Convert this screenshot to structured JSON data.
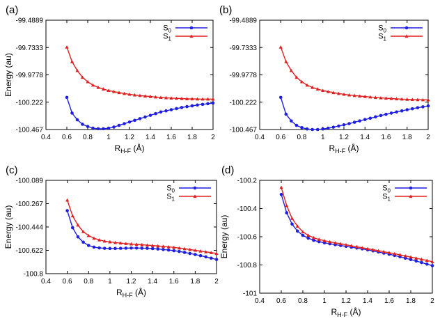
{
  "figure": {
    "colors": {
      "S0": "#1f1fe0",
      "S1": "#e01f1f"
    }
  },
  "chart_data": [
    {
      "type": "line",
      "panel": "(a)",
      "xlabel": "RH-F (Å)",
      "ylabel": "Energy (au)",
      "xlim": [
        0.4,
        2.0
      ],
      "ylim": [
        -100.467,
        -99.4889
      ],
      "xticks": [
        "0.4",
        "0.6",
        "0.8",
        "1",
        "1.2",
        "1.4",
        "1.6",
        "1.8",
        "2"
      ],
      "yticks": [
        "-99.4889",
        "-99.7333",
        "-99.9778",
        "-100.222",
        "-100.467"
      ],
      "legend": {
        "position": "top-right",
        "entries": [
          {
            "main": "S",
            "sub": "0"
          },
          {
            "main": "S",
            "sub": "1"
          }
        ]
      },
      "x": [
        0.6,
        0.65,
        0.7,
        0.75,
        0.8,
        0.85,
        0.9,
        0.95,
        1.0,
        1.05,
        1.1,
        1.15,
        1.2,
        1.25,
        1.3,
        1.35,
        1.4,
        1.45,
        1.5,
        1.55,
        1.6,
        1.65,
        1.7,
        1.75,
        1.8,
        1.85,
        1.9,
        1.95,
        2.0
      ],
      "series": [
        {
          "name": "S0",
          "marker": "circle",
          "values": [
            -100.18,
            -100.32,
            -100.38,
            -100.42,
            -100.44,
            -100.455,
            -100.46,
            -100.46,
            -100.455,
            -100.445,
            -100.43,
            -100.415,
            -100.4,
            -100.385,
            -100.37,
            -100.355,
            -100.34,
            -100.325,
            -100.31,
            -100.3,
            -100.29,
            -100.28,
            -100.27,
            -100.262,
            -100.255,
            -100.248,
            -100.242,
            -100.236,
            -100.23
          ]
        },
        {
          "name": "S1",
          "marker": "triangle",
          "values": [
            -99.73,
            -99.86,
            -99.94,
            -100.0,
            -100.04,
            -100.07,
            -100.09,
            -100.105,
            -100.118,
            -100.128,
            -100.137,
            -100.145,
            -100.152,
            -100.158,
            -100.163,
            -100.168,
            -100.172,
            -100.176,
            -100.18,
            -100.183,
            -100.186,
            -100.188,
            -100.19,
            -100.192,
            -100.193,
            -100.194,
            -100.195,
            -100.195,
            -100.195
          ]
        }
      ]
    },
    {
      "type": "line",
      "panel": "(b)",
      "xlabel": "RH-F (Å)",
      "ylabel": "",
      "xlim": [
        0.4,
        2.0
      ],
      "ylim": [
        -100.467,
        -99.4889
      ],
      "xticks": [
        "0.4",
        "0.6",
        "0.8",
        "1",
        "1.2",
        "1.4",
        "1.6",
        "1.8",
        "2"
      ],
      "yticks": [
        "-99.4889",
        "-99.7333",
        "-99.9778",
        "-100.222",
        "-100.467"
      ],
      "legend": {
        "position": "top-right",
        "entries": [
          {
            "main": "S",
            "sub": "0"
          },
          {
            "main": "S",
            "sub": "1"
          }
        ]
      },
      "x": [
        0.6,
        0.65,
        0.7,
        0.75,
        0.8,
        0.85,
        0.9,
        0.95,
        1.0,
        1.05,
        1.1,
        1.15,
        1.2,
        1.25,
        1.3,
        1.35,
        1.4,
        1.45,
        1.5,
        1.55,
        1.6,
        1.65,
        1.7,
        1.75,
        1.8,
        1.85,
        1.9,
        1.95,
        2.0
      ],
      "series": [
        {
          "name": "S0",
          "marker": "circle",
          "values": [
            -100.18,
            -100.33,
            -100.39,
            -100.43,
            -100.45,
            -100.462,
            -100.467,
            -100.467,
            -100.462,
            -100.455,
            -100.446,
            -100.436,
            -100.425,
            -100.414,
            -100.402,
            -100.39,
            -100.378,
            -100.366,
            -100.354,
            -100.342,
            -100.331,
            -100.32,
            -100.31,
            -100.3,
            -100.29,
            -100.281,
            -100.272,
            -100.264,
            -100.256
          ]
        },
        {
          "name": "S1",
          "marker": "triangle",
          "values": [
            -99.73,
            -99.86,
            -99.94,
            -100.0,
            -100.04,
            -100.07,
            -100.09,
            -100.105,
            -100.118,
            -100.128,
            -100.137,
            -100.145,
            -100.152,
            -100.158,
            -100.163,
            -100.168,
            -100.172,
            -100.176,
            -100.18,
            -100.184,
            -100.187,
            -100.19,
            -100.193,
            -100.195,
            -100.197,
            -100.199,
            -100.2,
            -100.201,
            -100.202
          ]
        }
      ]
    },
    {
      "type": "line",
      "panel": "(c)",
      "xlabel": "RH-F (Å)",
      "ylabel": "Energy (au)",
      "xlim": [
        0.4,
        2.0
      ],
      "ylim": [
        -100.8,
        -100.089
      ],
      "xticks": [
        "0.4",
        "0.6",
        "0.8",
        "1",
        "1.2",
        "1.4",
        "1.6",
        "1.8",
        "2"
      ],
      "yticks": [
        "-100.089",
        "-100.267",
        "-100.444",
        "-100.622",
        "-100.8"
      ],
      "legend": {
        "position": "top-right",
        "entries": [
          {
            "main": "S",
            "sub": "0"
          },
          {
            "main": "S",
            "sub": "1"
          }
        ]
      },
      "x": [
        0.6,
        0.65,
        0.7,
        0.75,
        0.8,
        0.85,
        0.9,
        0.95,
        1.0,
        1.05,
        1.1,
        1.15,
        1.2,
        1.25,
        1.3,
        1.35,
        1.4,
        1.45,
        1.5,
        1.55,
        1.6,
        1.65,
        1.7,
        1.75,
        1.8,
        1.85,
        1.9,
        1.95,
        2.0
      ],
      "series": [
        {
          "name": "S0",
          "marker": "circle",
          "values": [
            -100.32,
            -100.45,
            -100.52,
            -100.56,
            -100.585,
            -100.598,
            -100.604,
            -100.607,
            -100.608,
            -100.608,
            -100.607,
            -100.606,
            -100.605,
            -100.605,
            -100.606,
            -100.607,
            -100.609,
            -100.612,
            -100.616,
            -100.62,
            -100.625,
            -100.631,
            -100.638,
            -100.646,
            -100.654,
            -100.663,
            -100.672,
            -100.682,
            -100.692
          ]
        },
        {
          "name": "S1",
          "marker": "triangle",
          "values": [
            -100.24,
            -100.36,
            -100.43,
            -100.48,
            -100.51,
            -100.53,
            -100.543,
            -100.552,
            -100.558,
            -100.563,
            -100.567,
            -100.571,
            -100.574,
            -100.577,
            -100.58,
            -100.583,
            -100.586,
            -100.589,
            -100.592,
            -100.596,
            -100.6,
            -100.605,
            -100.61,
            -100.616,
            -100.622,
            -100.628,
            -100.634,
            -100.64,
            -100.646
          ]
        }
      ]
    },
    {
      "type": "line",
      "panel": "(d)",
      "xlabel": "RH-F (Å)",
      "ylabel": "Energy (au)",
      "xlim": [
        0.4,
        2.0
      ],
      "ylim": [
        -101.0,
        -100.2
      ],
      "xticks": [
        "0.4",
        "0.6",
        "0.8",
        "1",
        "1.2",
        "1.4",
        "1.6",
        "1.8",
        "2"
      ],
      "yticks": [
        "-100.2",
        "-100.4",
        "-100.6",
        "-100.8",
        "-101"
      ],
      "legend": {
        "position": "top-right",
        "entries": [
          {
            "main": "S",
            "sub": "0"
          },
          {
            "main": "S",
            "sub": "1"
          }
        ]
      },
      "x": [
        0.6,
        0.65,
        0.7,
        0.75,
        0.8,
        0.85,
        0.9,
        0.95,
        1.0,
        1.05,
        1.1,
        1.15,
        1.2,
        1.25,
        1.3,
        1.35,
        1.4,
        1.45,
        1.5,
        1.55,
        1.6,
        1.65,
        1.7,
        1.75,
        1.8,
        1.85,
        1.9,
        1.95,
        2.0
      ],
      "series": [
        {
          "name": "S0",
          "marker": "circle",
          "values": [
            -100.3,
            -100.43,
            -100.51,
            -100.56,
            -100.59,
            -100.61,
            -100.625,
            -100.635,
            -100.643,
            -100.65,
            -100.656,
            -100.662,
            -100.668,
            -100.674,
            -100.68,
            -100.686,
            -100.693,
            -100.7,
            -100.708,
            -100.716,
            -100.724,
            -100.733,
            -100.742,
            -100.752,
            -100.762,
            -100.772,
            -100.783,
            -100.794,
            -100.805
          ]
        },
        {
          "name": "S1",
          "marker": "triangle",
          "values": [
            -100.25,
            -100.38,
            -100.47,
            -100.525,
            -100.565,
            -100.59,
            -100.607,
            -100.619,
            -100.628,
            -100.636,
            -100.643,
            -100.65,
            -100.657,
            -100.664,
            -100.671,
            -100.678,
            -100.685,
            -100.692,
            -100.699,
            -100.706,
            -100.713,
            -100.72,
            -100.728,
            -100.736,
            -100.744,
            -100.752,
            -100.76,
            -100.768,
            -100.777
          ]
        }
      ]
    }
  ]
}
